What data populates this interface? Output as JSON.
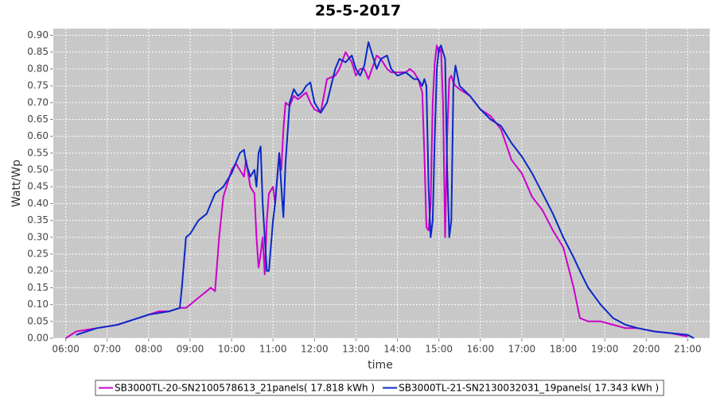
{
  "chart_data": {
    "type": "line",
    "title": "25-5-2017",
    "x_label": "time",
    "y_label": "Watt/Wp",
    "x": [
      6.0,
      6.25,
      6.5,
      6.75,
      7.0,
      7.25,
      7.5,
      7.75,
      8.0,
      8.25,
      8.5,
      8.75,
      8.8,
      8.9,
      9.0,
      9.2,
      9.4,
      9.5,
      9.6,
      9.7,
      9.8,
      10.0,
      10.1,
      10.2,
      10.3,
      10.35,
      10.45,
      10.55,
      10.6,
      10.65,
      10.7,
      10.75,
      10.8,
      10.85,
      10.9,
      11.0,
      11.05,
      11.15,
      11.2,
      11.25,
      11.3,
      11.4,
      11.5,
      11.6,
      11.7,
      11.8,
      11.9,
      12.0,
      12.15,
      12.3,
      12.5,
      12.6,
      12.75,
      12.9,
      13.0,
      13.1,
      13.2,
      13.3,
      13.5,
      13.6,
      13.75,
      13.85,
      14.0,
      14.2,
      14.3,
      14.4,
      14.5,
      14.6,
      14.65,
      14.7,
      14.75,
      14.8,
      14.85,
      14.9,
      14.95,
      15.0,
      15.05,
      15.1,
      15.15,
      15.2,
      15.25,
      15.3,
      15.35,
      15.4,
      15.5,
      15.75,
      16.0,
      16.25,
      16.5,
      16.75,
      17.0,
      17.25,
      17.5,
      17.75,
      18.0,
      18.25,
      18.4,
      18.6,
      18.9,
      19.2,
      19.5,
      19.8,
      20.2,
      20.6,
      21.0,
      21.15
    ],
    "series": [
      {
        "name": "SB3000TL-20-SN2100578613_21panels( 17.818 kWh )",
        "color": "#cc00cc",
        "values": [
          0.0,
          0.02,
          0.025,
          0.03,
          0.035,
          0.04,
          0.05,
          0.06,
          0.07,
          0.08,
          0.08,
          0.09,
          0.09,
          0.09,
          0.1,
          0.12,
          0.14,
          0.15,
          0.14,
          0.3,
          0.42,
          0.5,
          0.52,
          0.5,
          0.48,
          0.53,
          0.45,
          0.43,
          0.3,
          0.21,
          0.25,
          0.3,
          0.19,
          0.35,
          0.43,
          0.45,
          0.4,
          0.55,
          0.5,
          0.62,
          0.7,
          0.69,
          0.72,
          0.71,
          0.72,
          0.73,
          0.7,
          0.68,
          0.67,
          0.77,
          0.78,
          0.8,
          0.85,
          0.82,
          0.78,
          0.8,
          0.8,
          0.77,
          0.84,
          0.83,
          0.8,
          0.79,
          0.79,
          0.79,
          0.8,
          0.79,
          0.77,
          0.73,
          0.55,
          0.33,
          0.32,
          0.4,
          0.7,
          0.82,
          0.87,
          0.85,
          0.86,
          0.7,
          0.3,
          0.6,
          0.77,
          0.78,
          0.76,
          0.75,
          0.74,
          0.72,
          0.68,
          0.66,
          0.62,
          0.53,
          0.49,
          0.42,
          0.38,
          0.32,
          0.27,
          0.15,
          0.06,
          0.05,
          0.05,
          0.04,
          0.03,
          0.03,
          0.02,
          0.015,
          0.005,
          null
        ]
      },
      {
        "name": "SB3000TL-21-SN2130032031_19panels( 17.343 kWh )",
        "color": "#0a28c8",
        "values": [
          null,
          0.01,
          0.02,
          0.03,
          0.035,
          0.04,
          0.05,
          0.06,
          0.07,
          0.075,
          0.08,
          0.09,
          0.15,
          0.3,
          0.31,
          0.35,
          0.37,
          0.4,
          0.43,
          0.44,
          0.45,
          0.49,
          0.52,
          0.55,
          0.56,
          0.52,
          0.48,
          0.5,
          0.45,
          0.55,
          0.57,
          0.4,
          0.3,
          0.2,
          0.2,
          0.35,
          0.4,
          0.55,
          0.45,
          0.36,
          0.52,
          0.7,
          0.74,
          0.72,
          0.73,
          0.75,
          0.76,
          0.7,
          0.67,
          0.7,
          0.8,
          0.83,
          0.82,
          0.84,
          0.8,
          0.78,
          0.81,
          0.88,
          0.8,
          0.83,
          0.84,
          0.8,
          0.78,
          0.79,
          0.78,
          0.77,
          0.77,
          0.75,
          0.77,
          0.75,
          0.45,
          0.3,
          0.35,
          0.6,
          0.8,
          0.86,
          0.87,
          0.85,
          0.83,
          0.5,
          0.3,
          0.35,
          0.75,
          0.81,
          0.75,
          0.72,
          0.68,
          0.65,
          0.63,
          0.58,
          0.54,
          0.49,
          0.43,
          0.37,
          0.3,
          0.24,
          0.2,
          0.15,
          0.1,
          0.06,
          0.04,
          0.03,
          0.02,
          0.015,
          0.01,
          0.0
        ]
      }
    ],
    "xlim": [
      5.7,
      21.53
    ],
    "ylim": [
      0,
      0.92
    ],
    "xticks": [
      {
        "value": 6,
        "label": "06:00"
      },
      {
        "value": 7,
        "label": "07:00"
      },
      {
        "value": 8,
        "label": "08:00"
      },
      {
        "value": 9,
        "label": "09:00"
      },
      {
        "value": 10,
        "label": "10:00"
      },
      {
        "value": 11,
        "label": "11:00"
      },
      {
        "value": 12,
        "label": "12:00"
      },
      {
        "value": 13,
        "label": "13:00"
      },
      {
        "value": 14,
        "label": "14:00"
      },
      {
        "value": 15,
        "label": "15:00"
      },
      {
        "value": 16,
        "label": "16:00"
      },
      {
        "value": 17,
        "label": "17:00"
      },
      {
        "value": 18,
        "label": "18:00"
      },
      {
        "value": 19,
        "label": "19:00"
      },
      {
        "value": 20,
        "label": "20:00"
      },
      {
        "value": 21,
        "label": "21:00"
      }
    ],
    "yticks": [
      {
        "value": 0,
        "label": "0.00"
      },
      {
        "value": 0.05,
        "label": "0.05"
      },
      {
        "value": 0.1,
        "label": "0.10"
      },
      {
        "value": 0.15,
        "label": "0.15"
      },
      {
        "value": 0.2,
        "label": "0.20"
      },
      {
        "value": 0.25,
        "label": "0.25"
      },
      {
        "value": 0.3,
        "label": "0.30"
      },
      {
        "value": 0.35,
        "label": "0.35"
      },
      {
        "value": 0.4,
        "label": "0.40"
      },
      {
        "value": 0.45,
        "label": "0.45"
      },
      {
        "value": 0.5,
        "label": "0.50"
      },
      {
        "value": 0.55,
        "label": "0.55"
      },
      {
        "value": 0.6,
        "label": "0.60"
      },
      {
        "value": 0.65,
        "label": "0.65"
      },
      {
        "value": 0.7,
        "label": "0.70"
      },
      {
        "value": 0.75,
        "label": "0.75"
      },
      {
        "value": 0.8,
        "label": "0.80"
      },
      {
        "value": 0.85,
        "label": "0.85"
      },
      {
        "value": 0.9,
        "label": "0.90"
      }
    ],
    "grid": true
  }
}
